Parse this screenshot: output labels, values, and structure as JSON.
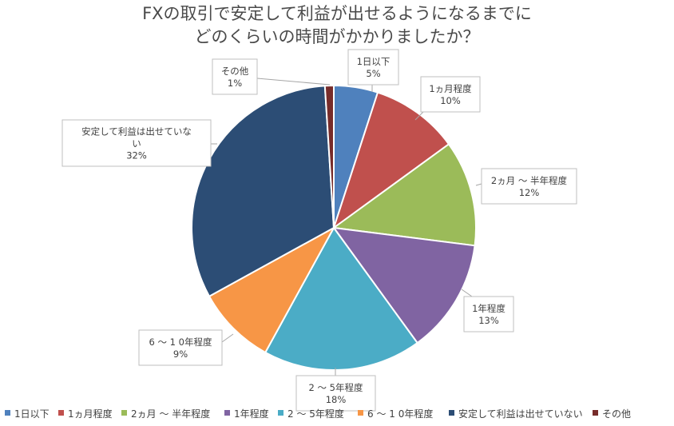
{
  "chart_data": {
    "type": "pie",
    "title_lines": [
      "FXの取引で安定して利益が出せるようになるまでに",
      "どのくらいの時間がかかりましたか？"
    ],
    "categories": [
      "1日以下",
      "1ヵ月程度",
      "2ヵ月 ～ 半年程度",
      "1年程度",
      "2 ～ 5年程度",
      "6 ～ 1 0年程度",
      "安定して利益は出せていない",
      "その他"
    ],
    "values": [
      5,
      10,
      12,
      13,
      18,
      9,
      32,
      1
    ],
    "value_labels": [
      "5%",
      "10%",
      "12%",
      "13%",
      "18%",
      "9%",
      "32%",
      "1%"
    ],
    "callout_lines": [
      [
        "1日以下"
      ],
      [
        "1ヵ月程度"
      ],
      [
        "2ヵ月 ～ 半年程度"
      ],
      [
        "1年程度"
      ],
      [
        "2 ～ 5年程度"
      ],
      [
        "6 ～ 1 0年程度"
      ],
      [
        "安定して利益は出せていな",
        "い"
      ],
      [
        "その他"
      ]
    ],
    "colors": [
      "#4f81bd",
      "#c0504d",
      "#9bbb59",
      "#8064a2",
      "#4bacc6",
      "#f79646",
      "#2c4d75",
      "#772c2a"
    ],
    "legend_position": "bottom"
  }
}
